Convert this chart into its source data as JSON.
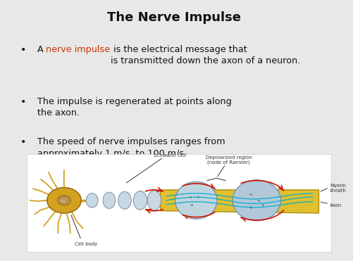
{
  "title": "The Nerve Impulse",
  "title_fontsize": 13,
  "title_color": "#111111",
  "bullet_fontsize": 9.2,
  "bullet_color": "#111111",
  "red_color": "#cc3300",
  "background_color": "#e8e8e8",
  "bullet1_pre": "A ",
  "bullet1_red": "nerve impulse",
  "bullet1_post": " is the electrical message that\nis transmitted down the axon of a neuron.",
  "bullet2": "The impulse is regenerated at points along\nthe axon.",
  "bullet3": "The speed of nerve impulses ranges from\napproximately 1 m/s  to 100 m/s.",
  "img_label_schwann": "Schwann cell",
  "img_label_depo": "Depolarized region\n(node of Ranvier)",
  "img_label_cell": "Cell body",
  "img_label_myelin": "Myelin\nsheath",
  "img_label_axon": "Axon",
  "soma_color": "#d4a020",
  "soma_edge": "#8b6510",
  "bead_color": "#c8d8e4",
  "bead_edge": "#8899aa",
  "axon_color": "#e0c030",
  "axon_edge": "#b09010",
  "depo_color": "#c0d4e0",
  "depo_edge": "#7090a8",
  "arrow_red": "#cc1100",
  "cyan_color": "#00aacc",
  "label_fontsize": 5.0
}
